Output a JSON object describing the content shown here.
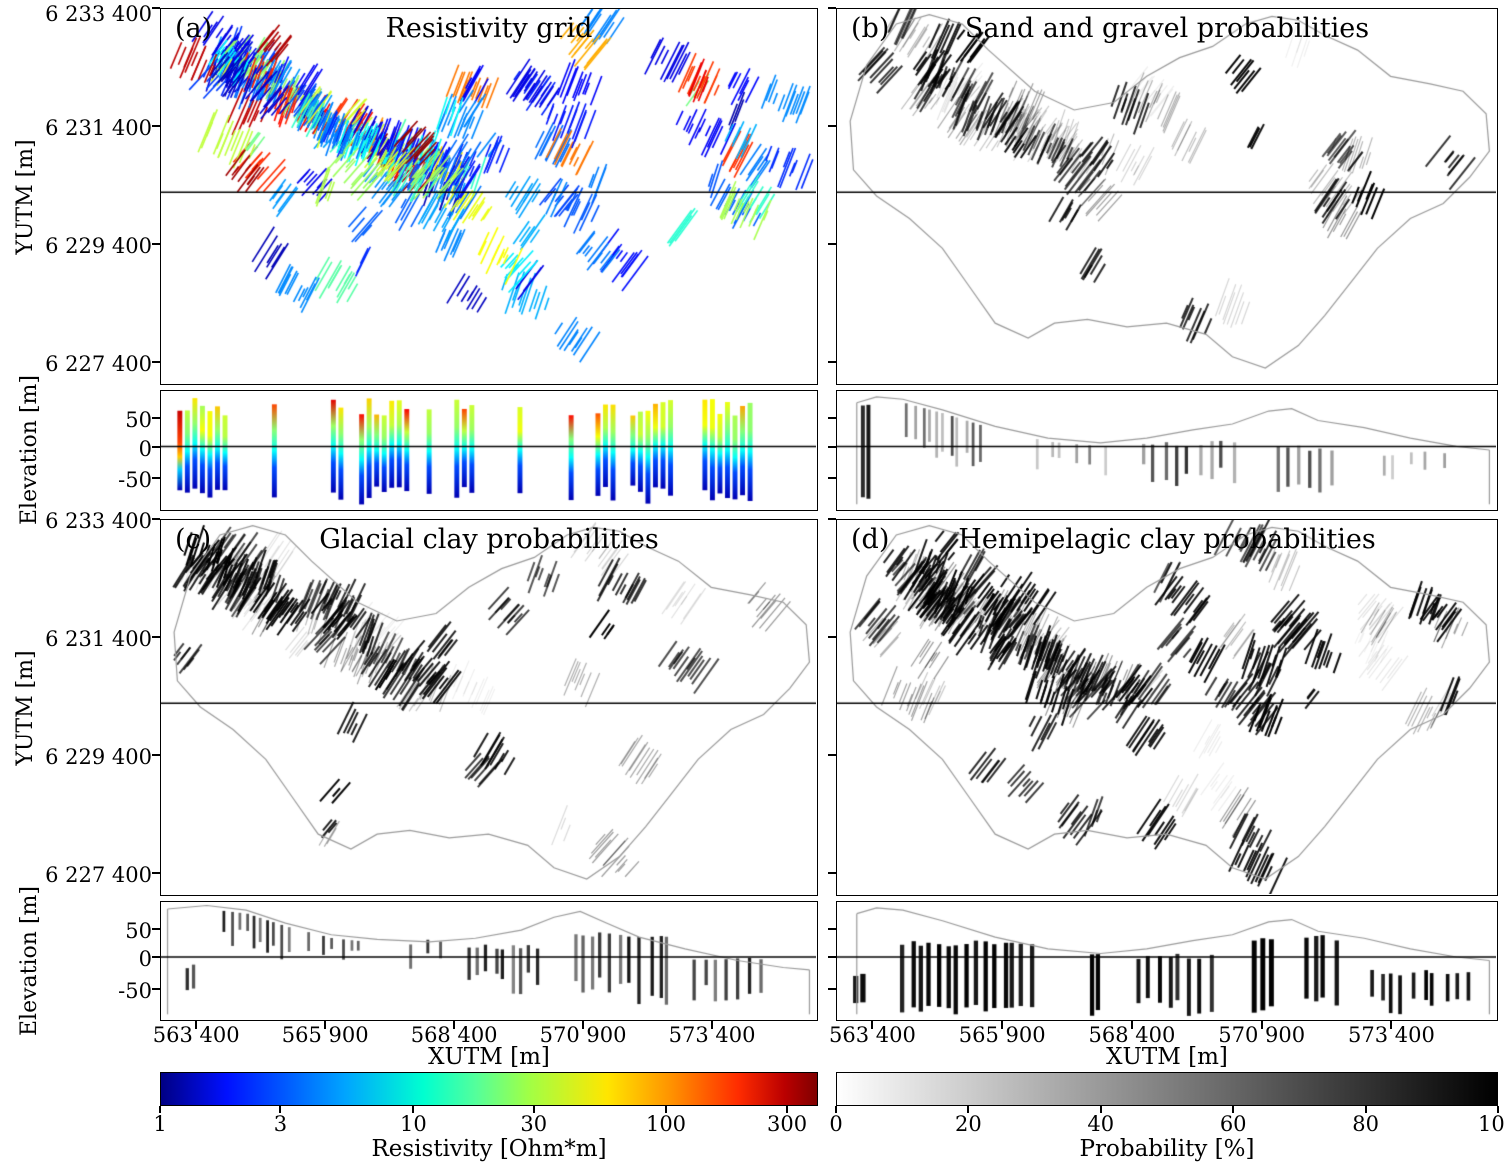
{
  "figure": {
    "panels": [
      {
        "tag": "(a)",
        "title": "Resistivity grid"
      },
      {
        "tag": "(b)",
        "title": "Sand and gravel probabilities"
      },
      {
        "tag": "(c)",
        "title": "Glacial clay probabilities"
      },
      {
        "tag": "(d)",
        "title": "Hemipelagic clay probabilities"
      }
    ],
    "axes": {
      "map_y_label": "YUTM [m]",
      "elev_y_label": "Elevation [m]",
      "x_label": "XUTM [m]",
      "map_y_ticks": [
        "6 233 400",
        "6 231 400",
        "6 229 400",
        "6 227 400"
      ],
      "elev_y_ticks": [
        "50",
        "0",
        "-50"
      ],
      "x_ticks": [
        "563 400",
        "565 900",
        "568 400",
        "570 900",
        "573 400"
      ]
    },
    "colorbars": {
      "resistivity": {
        "label": "Resistivity [Ohm*m]",
        "ticks": [
          "1",
          "3",
          "10",
          "30",
          "100",
          "300"
        ]
      },
      "probability": {
        "label": "Probability  [%]",
        "ticks": [
          "0",
          "20",
          "40",
          "60",
          "80",
          "100"
        ]
      }
    }
  },
  "chart_data": {
    "type": "heatmap",
    "title": "Four-panel geophysical figure: resistivity grid and lithology probability maps, each with a map view and an elevation cross-section",
    "panels": [
      {
        "tag": "(a)",
        "title": "Resistivity grid",
        "colorbar": "resistivity",
        "content": "Sparse flight-line cells; mostly 1-10 Ohm*m (blue) with patches of 30-300 Ohm*m (green to orange/red) concentrated in the upper half of the map; cross-section bars grade from green/yellow (and locally orange-red) near the surface to deep blue at depth"
      },
      {
        "tag": "(b)",
        "title": "Sand and gravel probabilities",
        "colorbar": "probability",
        "content": "Mostly low probability (white); high-probability dark streaks along the northwest diagonal band and scattered in the centre and east; sparse dark bars in the cross-section"
      },
      {
        "tag": "(c)",
        "title": "Glacial clay probabilities",
        "colorbar": "probability",
        "content": "High-probability dark streaks along the northwest diagonal band and in the central area; cross-section bars cluster near and below 0 m elevation"
      },
      {
        "tag": "(d)",
        "title": "Hemipelagic clay probabilities",
        "colorbar": "probability",
        "content": "Widespread high probability (dark) across most of the survey area; thick black bars below about +20 m elevation in the cross-section"
      }
    ],
    "map_axes": {
      "xlabel": "XUTM [m]",
      "ylabel": "YUTM [m]",
      "xlim": [
        562700,
        575400
      ],
      "ylim": [
        6226900,
        6233400
      ],
      "x_ticks": [
        563400,
        565900,
        568400,
        570900,
        573400
      ],
      "y_ticks": [
        6233400,
        6231400,
        6229400,
        6227400
      ],
      "profile_line_y": 6230250
    },
    "section_axes": {
      "ylabel": "Elevation [m]",
      "ylim": [
        -100,
        95
      ],
      "y_ticks": [
        50,
        0,
        -50
      ]
    },
    "colorbars": [
      {
        "id": "resistivity",
        "label": "Resistivity [Ohm*m]",
        "colormap": "jet",
        "scale": "log",
        "range": [
          1,
          400
        ],
        "ticks": [
          1,
          3,
          10,
          30,
          100,
          300
        ]
      },
      {
        "id": "probability",
        "label": "Probability  [%]",
        "colormap": "white_to_black",
        "scale": "linear",
        "range": [
          0,
          100
        ],
        "ticks": [
          0,
          20,
          40,
          60,
          80,
          100
        ]
      }
    ],
    "grid": false,
    "legend": "none"
  }
}
